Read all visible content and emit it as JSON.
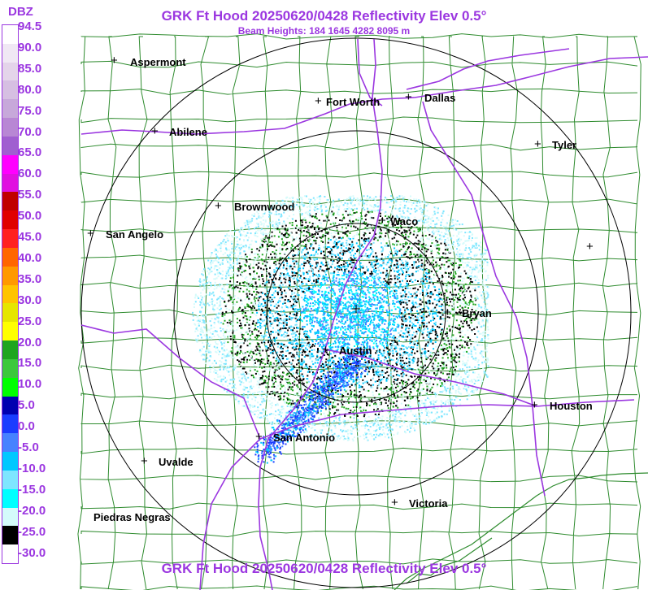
{
  "header": {
    "title": "GRK Ft Hood 20250620/0428 Reflectivity Elev 0.5°",
    "beam_heights": "Beam Heights: 184 1645 4282 8095 m",
    "footer": "GRK Ft Hood 20250620/0428 Reflectivity Elev 0.5°"
  },
  "legend": {
    "unit": "DBZ",
    "ticks": [
      "94.5",
      "90.0",
      "85.0",
      "80.0",
      "75.0",
      "70.0",
      "65.0",
      "60.0",
      "55.0",
      "50.0",
      "45.0",
      "40.0",
      "35.0",
      "30.0",
      "25.0",
      "20.0",
      "15.0",
      "10.0",
      "5.0",
      "0.0",
      "-5.0",
      "-10.0",
      "-15.0",
      "-20.0",
      "-25.0",
      "-30.0"
    ],
    "colors": [
      "#ffffff",
      "#f0e8f4",
      "#e4d4ea",
      "#d6bfe2",
      "#c7a8da",
      "#b887d4",
      "#a05fd0",
      "#ff00ff",
      "#e010e0",
      "#c00000",
      "#e00000",
      "#ff2020",
      "#ff6600",
      "#ff9900",
      "#ffc400",
      "#e6e600",
      "#ffff00",
      "#1fa51f",
      "#3cc83c",
      "#00ff00",
      "#0000b0",
      "#1a3cff",
      "#4682ff",
      "#00c8ff",
      "#7ee6ff",
      "#00ffff",
      "#d4fbfb",
      "#000000",
      "#ffffff"
    ]
  },
  "cities": [
    {
      "name": "Aspermont"
    },
    {
      "name": "Fort Worth"
    },
    {
      "name": "Dallas"
    },
    {
      "name": "Abilene"
    },
    {
      "name": "Tyler"
    },
    {
      "name": "Brownwood"
    },
    {
      "name": "Waco"
    },
    {
      "name": "San Angelo"
    },
    {
      "name": "Bryan"
    },
    {
      "name": "Austin"
    },
    {
      "name": "Houston"
    },
    {
      "name": "San Antonio"
    },
    {
      "name": "Uvalde"
    },
    {
      "name": "Victoria"
    },
    {
      "name": "Piedras Negras"
    }
  ],
  "colors": {
    "header_text": "#9b37e0",
    "county_lines": "#2e8b2e",
    "highways": "#9b37e0",
    "range_rings": "#000000"
  }
}
